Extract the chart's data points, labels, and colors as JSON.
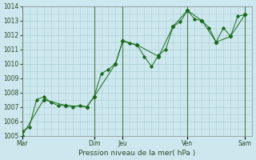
{
  "xlabel": "Pression niveau de la mer( hPa )",
  "bg_color": "#cce8ee",
  "grid_color": "#aaccd4",
  "line_color": "#1a6b1a",
  "vline_color": "#4a7a4a",
  "ylim": [
    1005,
    1014
  ],
  "yticks": [
    1005,
    1006,
    1007,
    1008,
    1009,
    1010,
    1011,
    1012,
    1013,
    1014
  ],
  "day_labels": [
    "Mar",
    "Dim",
    "Jeu",
    "Ven",
    "Sam"
  ],
  "day_positions": [
    0,
    10,
    14,
    23,
    31
  ],
  "total_points": 32,
  "line1_x": [
    0,
    1,
    2,
    3,
    4,
    5,
    6,
    7,
    8,
    9,
    10,
    11,
    12,
    13,
    14,
    15,
    16,
    17,
    18,
    19,
    20,
    21,
    22,
    23,
    24,
    25,
    26,
    27,
    28,
    29,
    30,
    31
  ],
  "line1_y": [
    1005.3,
    1005.6,
    1007.5,
    1007.7,
    1007.3,
    1007.1,
    1007.1,
    1007.0,
    1007.1,
    1007.0,
    1007.7,
    1009.3,
    1009.6,
    1010.0,
    1011.6,
    1011.4,
    1011.3,
    1010.5,
    1009.8,
    1010.6,
    1011.0,
    1012.6,
    1012.9,
    1013.7,
    1013.1,
    1013.0,
    1012.5,
    1011.5,
    1012.5,
    1011.9,
    1013.3,
    1013.4
  ],
  "line2_x": [
    0,
    3,
    6,
    9,
    10,
    13,
    14,
    16,
    19,
    21,
    23,
    25,
    27,
    29,
    31
  ],
  "line2_y": [
    1005.0,
    1007.5,
    1007.1,
    1007.0,
    1007.7,
    1010.0,
    1011.6,
    1011.3,
    1010.5,
    1012.6,
    1013.7,
    1013.0,
    1011.5,
    1011.9,
    1013.4
  ]
}
